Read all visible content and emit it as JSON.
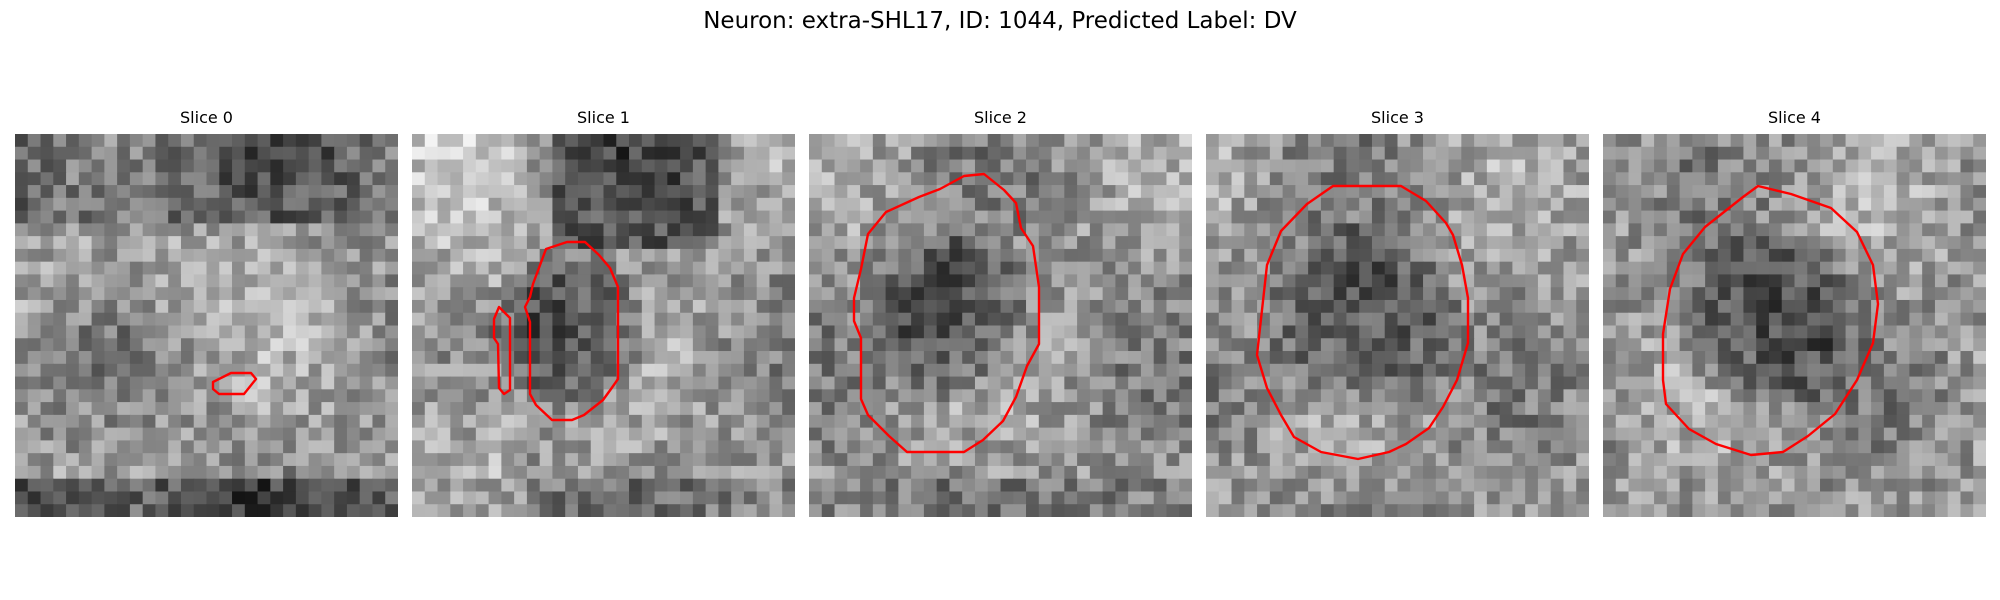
{
  "figure": {
    "title": "Neuron: extra-SHL17, ID: 1044, Predicted Label: DV",
    "contour_color": "#ff0000",
    "colormap": "gray"
  },
  "panels": [
    {
      "title": "Slice 0"
    },
    {
      "title": "Slice 1"
    },
    {
      "title": "Slice 2"
    },
    {
      "title": "Slice 3"
    },
    {
      "title": "Slice 4"
    }
  ]
}
